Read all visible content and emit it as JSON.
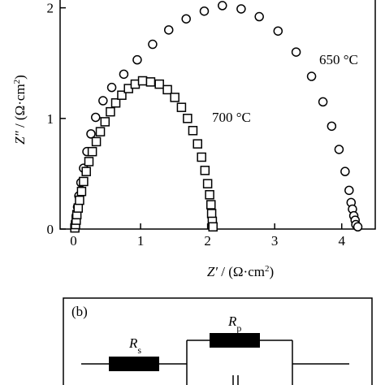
{
  "chart_data": {
    "type": "scatter",
    "xlabel_symbol": "Z′",
    "xlabel_unit": " / (Ω·cm",
    "xlabel_sup": "2",
    "xlabel_close": ")",
    "ylabel_symbol": "Z″",
    "ylabel_unit": " / (Ω·cm",
    "ylabel_sup": "2",
    "ylabel_close": ")",
    "xlim": [
      -0.2,
      4.5
    ],
    "ylim": [
      0,
      2.1
    ],
    "xticks": [
      0,
      1,
      2,
      3,
      4
    ],
    "yticks": [
      0,
      1,
      2
    ],
    "xtick_labels": [
      "0",
      "1",
      "2",
      "3",
      "4"
    ],
    "ytick_labels": [
      "0",
      "1",
      "2"
    ],
    "series": [
      {
        "name": "650 °C",
        "marker": "circle",
        "points": [
          [
            0.02,
            0.02
          ],
          [
            0.03,
            0.06
          ],
          [
            0.04,
            0.12
          ],
          [
            0.06,
            0.2
          ],
          [
            0.08,
            0.3
          ],
          [
            0.11,
            0.42
          ],
          [
            0.15,
            0.55
          ],
          [
            0.2,
            0.7
          ],
          [
            0.26,
            0.86
          ],
          [
            0.33,
            1.01
          ],
          [
            0.44,
            1.16
          ],
          [
            0.57,
            1.28
          ],
          [
            0.75,
            1.4
          ],
          [
            0.95,
            1.53
          ],
          [
            1.18,
            1.67
          ],
          [
            1.42,
            1.8
          ],
          [
            1.68,
            1.9
          ],
          [
            1.95,
            1.97
          ],
          [
            2.22,
            2.02
          ],
          [
            2.5,
            1.99
          ],
          [
            2.77,
            1.92
          ],
          [
            3.05,
            1.79
          ],
          [
            3.32,
            1.6
          ],
          [
            3.55,
            1.38
          ],
          [
            3.72,
            1.15
          ],
          [
            3.85,
            0.93
          ],
          [
            3.96,
            0.72
          ],
          [
            4.05,
            0.52
          ],
          [
            4.11,
            0.35
          ],
          [
            4.14,
            0.24
          ],
          [
            4.16,
            0.18
          ],
          [
            4.18,
            0.12
          ],
          [
            4.2,
            0.08
          ],
          [
            4.21,
            0.04
          ],
          [
            4.24,
            0.02
          ]
        ],
        "label": "650 °C"
      },
      {
        "name": "700 °C",
        "marker": "square",
        "points": [
          [
            0.02,
            0.01
          ],
          [
            0.03,
            0.04
          ],
          [
            0.04,
            0.08
          ],
          [
            0.05,
            0.13
          ],
          [
            0.07,
            0.19
          ],
          [
            0.09,
            0.26
          ],
          [
            0.12,
            0.34
          ],
          [
            0.15,
            0.43
          ],
          [
            0.19,
            0.52
          ],
          [
            0.23,
            0.61
          ],
          [
            0.28,
            0.7
          ],
          [
            0.34,
            0.79
          ],
          [
            0.4,
            0.88
          ],
          [
            0.47,
            0.97
          ],
          [
            0.55,
            1.06
          ],
          [
            0.63,
            1.14
          ],
          [
            0.72,
            1.21
          ],
          [
            0.82,
            1.27
          ],
          [
            0.92,
            1.31
          ],
          [
            1.03,
            1.34
          ],
          [
            1.15,
            1.33
          ],
          [
            1.28,
            1.31
          ],
          [
            1.4,
            1.26
          ],
          [
            1.51,
            1.19
          ],
          [
            1.61,
            1.1
          ],
          [
            1.7,
            1.0
          ],
          [
            1.78,
            0.89
          ],
          [
            1.85,
            0.77
          ],
          [
            1.91,
            0.65
          ],
          [
            1.96,
            0.53
          ],
          [
            2.0,
            0.41
          ],
          [
            2.03,
            0.31
          ],
          [
            2.05,
            0.22
          ],
          [
            2.06,
            0.14
          ],
          [
            2.07,
            0.07
          ],
          [
            2.08,
            0.02
          ]
        ],
        "label": "700 °C"
      }
    ]
  },
  "panel_b": {
    "label": "(b)",
    "rs_symbol": "R",
    "rs_sub": "s",
    "rp_symbol": "R",
    "rp_sub": "p"
  }
}
